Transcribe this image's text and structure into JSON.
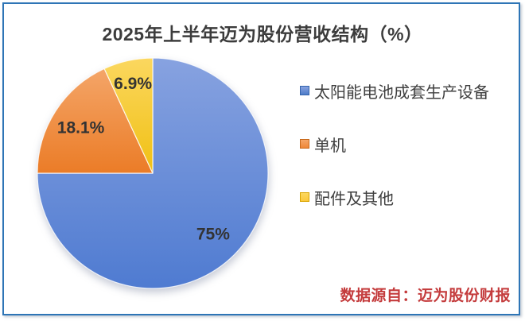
{
  "title": "2025年上半年迈为股份营收结构（%）",
  "source_note": "数据源自：迈为股份财报",
  "colors": {
    "frame_border": "#2E75B6",
    "title_text": "#3C3C3C",
    "label_text": "#333333",
    "legend_text": "#3F3F3F",
    "source_text": "#C43B3C",
    "panel_bg": "#FFFFFF"
  },
  "chart_data": {
    "type": "pie",
    "title": "2025年上半年迈为股份营收结构（%）",
    "direction": "clockwise",
    "start_angle_deg": 0,
    "legend_position": "right",
    "grid": false,
    "slices": [
      {
        "label": "太阳能电池成套生产设备",
        "value": 75,
        "display_value": "75%",
        "color": "#4F7BD1",
        "color_light": "#87A2E0",
        "legend_swatch": "#4E7CC8",
        "legend_swatch_border": "#3464AC"
      },
      {
        "label": "单机",
        "value": 18.1,
        "display_value": "18.1%",
        "color": "#EB7C27",
        "color_light": "#F4A568",
        "legend_swatch": "#EF8838",
        "legend_swatch_border": "#C8691B"
      },
      {
        "label": "配件及其他",
        "value": 6.9,
        "display_value": "6.9%",
        "color": "#F0C013",
        "color_light": "#FBD75F",
        "legend_swatch": "#FBC93D",
        "legend_swatch_border": "#D9A400"
      }
    ]
  }
}
